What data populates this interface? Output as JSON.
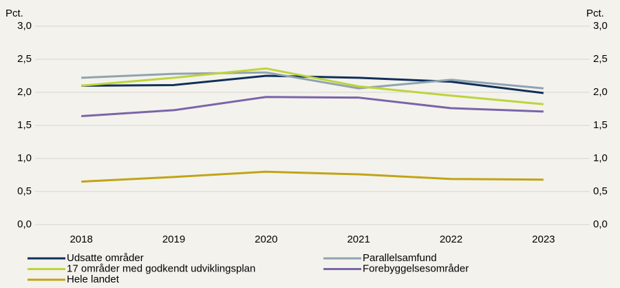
{
  "chart_data": {
    "type": "line",
    "ylabel": "Pct.",
    "y2label": "Pct.",
    "categories": [
      "2018",
      "2019",
      "2020",
      "2021",
      "2022",
      "2023"
    ],
    "series": [
      {
        "name": "Udsatte områder",
        "color": "#0e2f5a",
        "values": [
          2.1,
          2.11,
          2.25,
          2.22,
          2.16,
          1.99
        ]
      },
      {
        "name": "Parallelsamfund",
        "color": "#8fa3b1",
        "values": [
          2.22,
          2.28,
          2.3,
          2.06,
          2.19,
          2.06
        ]
      },
      {
        "name": "17 områder med godkendt udviklingsplan",
        "color": "#bfd33a",
        "values": [
          2.1,
          2.22,
          2.36,
          2.09,
          1.95,
          1.82
        ]
      },
      {
        "name": "Forebyggelsesområder",
        "color": "#7a64a8",
        "values": [
          1.64,
          1.73,
          1.93,
          1.92,
          1.76,
          1.71
        ]
      },
      {
        "name": "Hele landet",
        "color": "#c0a416",
        "values": [
          0.65,
          0.72,
          0.8,
          0.76,
          0.69,
          0.68
        ]
      }
    ],
    "ylim": [
      0,
      3
    ],
    "yticks": [
      {
        "value": 0,
        "label": "0,0"
      },
      {
        "value": 0.5,
        "label": "0,5"
      },
      {
        "value": 1,
        "label": "1,0"
      },
      {
        "value": 1.5,
        "label": "1,5"
      },
      {
        "value": 2,
        "label": "2,0"
      },
      {
        "value": 2.5,
        "label": "2,5"
      },
      {
        "value": 3,
        "label": "3,0"
      }
    ],
    "y2lim": [
      0,
      3
    ],
    "y2ticks": [
      {
        "value": 0,
        "label": "0,0"
      },
      {
        "value": 0.5,
        "label": "0,5"
      },
      {
        "value": 1,
        "label": "1,0"
      },
      {
        "value": 1.5,
        "label": "1,5"
      },
      {
        "value": 2,
        "label": "2,0"
      },
      {
        "value": 2.5,
        "label": "2,5"
      },
      {
        "value": 3,
        "label": "3,0"
      }
    ],
    "grid": true,
    "legend": "bottom"
  }
}
